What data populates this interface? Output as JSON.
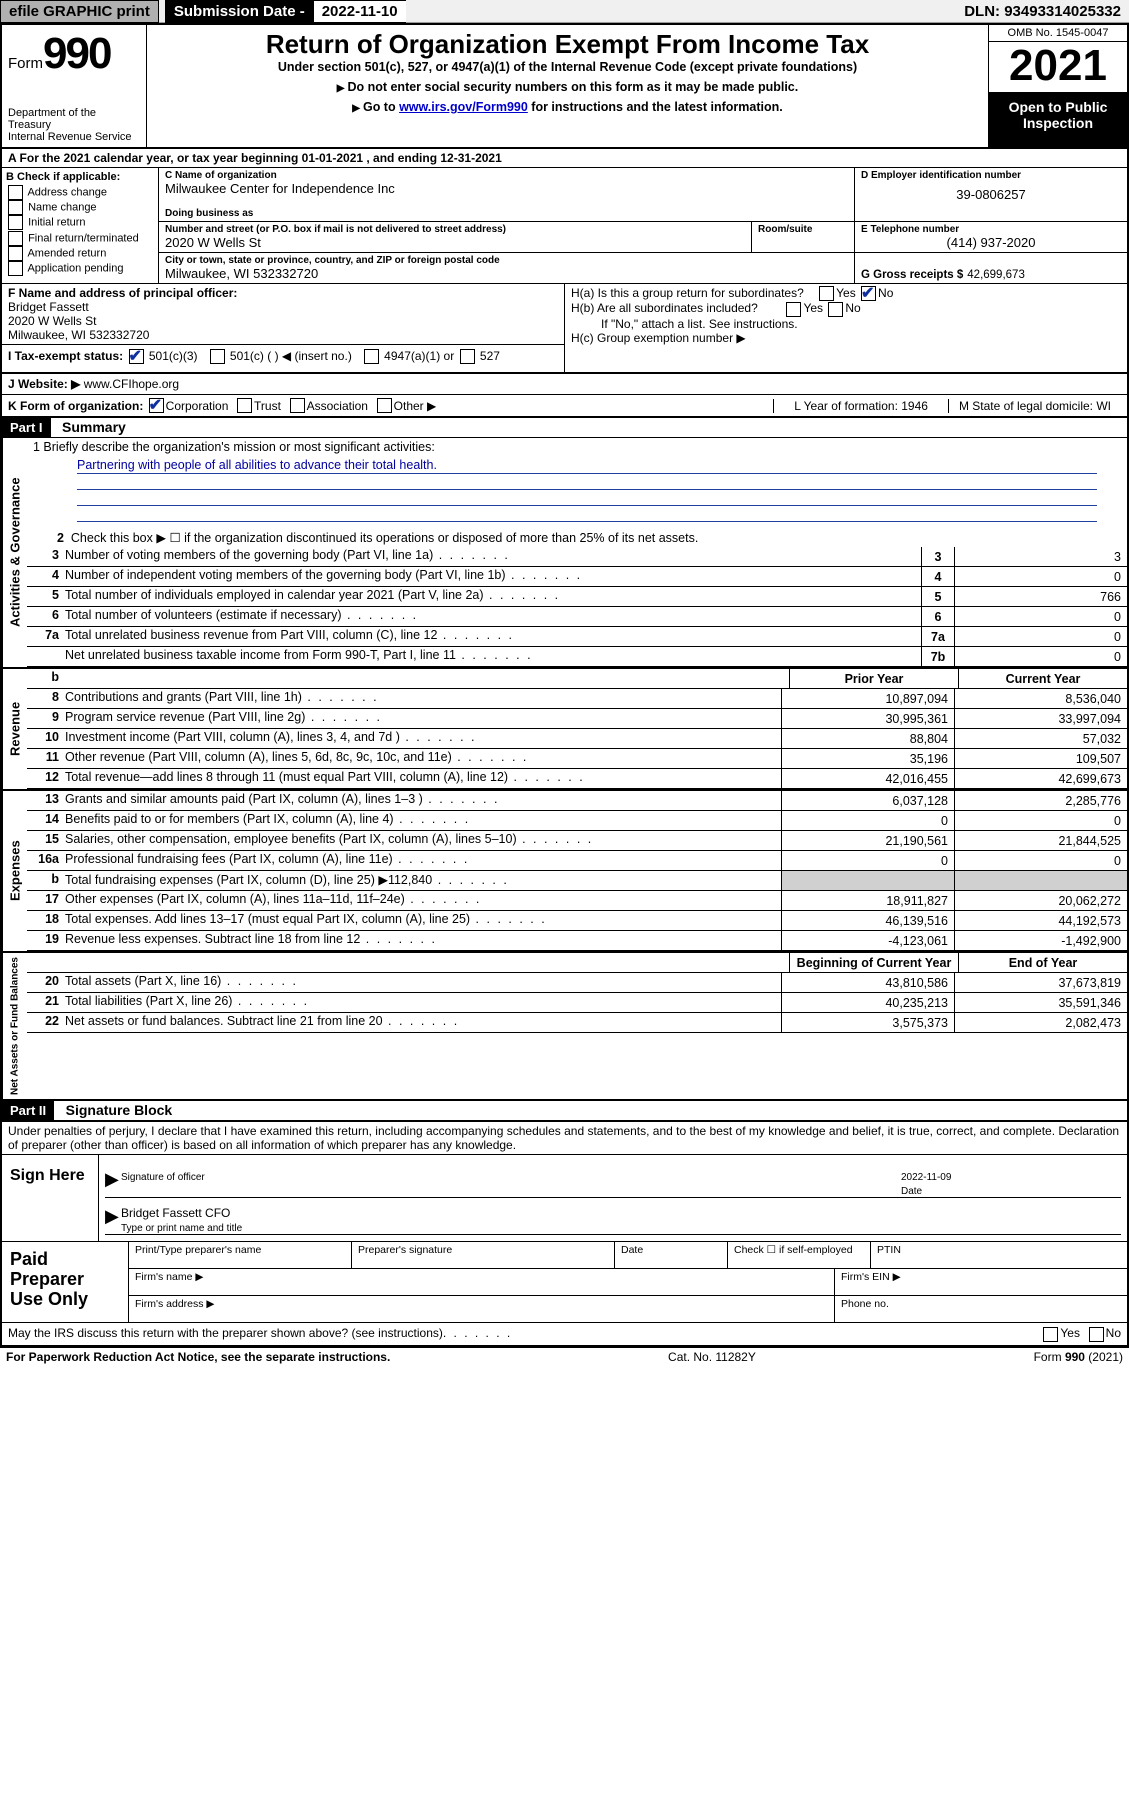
{
  "topbar": {
    "efile": "efile GRAPHIC print",
    "sub_label": "Submission Date -",
    "sub_date": "2022-11-10",
    "dln": "DLN: 93493314025332"
  },
  "header": {
    "form_prefix": "Form",
    "form_num": "990",
    "dept": "Department of the Treasury",
    "irs": "Internal Revenue Service",
    "title": "Return of Organization Exempt From Income Tax",
    "sub": "Under section 501(c), 527, or 4947(a)(1) of the Internal Revenue Code (except private foundations)",
    "instr1": "Do not enter social security numbers on this form as it may be made public.",
    "instr2_pre": "Go to ",
    "instr2_link": "www.irs.gov/Form990",
    "instr2_post": " for instructions and the latest information.",
    "omb": "OMB No. 1545-0047",
    "year": "2021",
    "open": "Open to Public Inspection"
  },
  "rowA": "A For the 2021 calendar year, or tax year beginning 01-01-2021   , and ending 12-31-2021",
  "boxB": {
    "label": "B Check if applicable:",
    "opts": [
      "Address change",
      "Name change",
      "Initial return",
      "Final return/terminated",
      "Amended return",
      "Application pending"
    ]
  },
  "boxC": {
    "name_label": "C Name of organization",
    "name": "Milwaukee Center for Independence Inc",
    "dba_label": "Doing business as",
    "addr_label": "Number and street (or P.O. box if mail is not delivered to street address)",
    "addr": "2020 W Wells St",
    "room_label": "Room/suite",
    "city_label": "City or town, state or province, country, and ZIP or foreign postal code",
    "city": "Milwaukee, WI  532332720"
  },
  "boxD": {
    "label": "D Employer identification number",
    "val": "39-0806257"
  },
  "boxE": {
    "label": "E Telephone number",
    "val": "(414) 937-2020"
  },
  "boxG": {
    "label": "G Gross receipts $",
    "val": "42,699,673"
  },
  "boxF": {
    "label": "F Name and address of principal officer:",
    "name": "Bridget Fassett",
    "addr": "2020 W Wells St",
    "city": "Milwaukee, WI  532332720"
  },
  "boxH": {
    "a": "H(a)  Is this a group return for subordinates?",
    "b": "H(b)  Are all subordinates included?",
    "note": "If \"No,\" attach a list. See instructions.",
    "c": "H(c)  Group exemption number ▶"
  },
  "rowI": {
    "label": "I  Tax-exempt status:",
    "o1": "501(c)(3)",
    "o2": "501(c) (  ) ◀ (insert no.)",
    "o3": "4947(a)(1) or",
    "o4": "527"
  },
  "rowJ": {
    "label": "J  Website: ▶",
    "val": "www.CFIhope.org"
  },
  "rowK": {
    "label": "K Form of organization:",
    "opts": [
      "Corporation",
      "Trust",
      "Association",
      "Other ▶"
    ],
    "L": "L Year of formation: 1946",
    "M": "M State of legal domicile: WI"
  },
  "part1": {
    "label": "Part I",
    "title": "Summary"
  },
  "summary": {
    "gov_label": "Activities & Governance",
    "rev_label": "Revenue",
    "exp_label": "Expenses",
    "net_label": "Net Assets or Fund Balances",
    "line1_label": "1  Briefly describe the organization's mission or most significant activities:",
    "line1_text": "Partnering with people of all abilities to advance their total health.",
    "line2": "Check this box ▶ ☐  if the organization discontinued its operations or disposed of more than 25% of its net assets.",
    "rows_gov": [
      {
        "n": "3",
        "d": "Number of voting members of the governing body (Part VI, line 1a)",
        "box": "3",
        "v": "3"
      },
      {
        "n": "4",
        "d": "Number of independent voting members of the governing body (Part VI, line 1b)",
        "box": "4",
        "v": "0"
      },
      {
        "n": "5",
        "d": "Total number of individuals employed in calendar year 2021 (Part V, line 2a)",
        "box": "5",
        "v": "766"
      },
      {
        "n": "6",
        "d": "Total number of volunteers (estimate if necessary)",
        "box": "6",
        "v": "0"
      },
      {
        "n": "7a",
        "d": "Total unrelated business revenue from Part VIII, column (C), line 12",
        "box": "7a",
        "v": "0"
      },
      {
        "n": "",
        "d": "Net unrelated business taxable income from Form 990-T, Part I, line 11",
        "box": "7b",
        "v": "0"
      }
    ],
    "col_prior": "Prior Year",
    "col_current": "Current Year",
    "rows_rev": [
      {
        "n": "8",
        "d": "Contributions and grants (Part VIII, line 1h)",
        "p": "10,897,094",
        "c": "8,536,040"
      },
      {
        "n": "9",
        "d": "Program service revenue (Part VIII, line 2g)",
        "p": "30,995,361",
        "c": "33,997,094"
      },
      {
        "n": "10",
        "d": "Investment income (Part VIII, column (A), lines 3, 4, and 7d )",
        "p": "88,804",
        "c": "57,032"
      },
      {
        "n": "11",
        "d": "Other revenue (Part VIII, column (A), lines 5, 6d, 8c, 9c, 10c, and 11e)",
        "p": "35,196",
        "c": "109,507"
      },
      {
        "n": "12",
        "d": "Total revenue—add lines 8 through 11 (must equal Part VIII, column (A), line 12)",
        "p": "42,016,455",
        "c": "42,699,673"
      }
    ],
    "rows_exp": [
      {
        "n": "13",
        "d": "Grants and similar amounts paid (Part IX, column (A), lines 1–3 )",
        "p": "6,037,128",
        "c": "2,285,776"
      },
      {
        "n": "14",
        "d": "Benefits paid to or for members (Part IX, column (A), line 4)",
        "p": "0",
        "c": "0"
      },
      {
        "n": "15",
        "d": "Salaries, other compensation, employee benefits (Part IX, column (A), lines 5–10)",
        "p": "21,190,561",
        "c": "21,844,525"
      },
      {
        "n": "16a",
        "d": "Professional fundraising fees (Part IX, column (A), line 11e)",
        "p": "0",
        "c": "0"
      },
      {
        "n": "b",
        "d": "Total fundraising expenses (Part IX, column (D), line 25) ▶112,840",
        "p": "grey",
        "c": "grey"
      },
      {
        "n": "17",
        "d": "Other expenses (Part IX, column (A), lines 11a–11d, 11f–24e)",
        "p": "18,911,827",
        "c": "20,062,272"
      },
      {
        "n": "18",
        "d": "Total expenses. Add lines 13–17 (must equal Part IX, column (A), line 25)",
        "p": "46,139,516",
        "c": "44,192,573"
      },
      {
        "n": "19",
        "d": "Revenue less expenses. Subtract line 18 from line 12",
        "p": "-4,123,061",
        "c": "-1,492,900"
      }
    ],
    "col_begin": "Beginning of Current Year",
    "col_end": "End of Year",
    "rows_net": [
      {
        "n": "20",
        "d": "Total assets (Part X, line 16)",
        "p": "43,810,586",
        "c": "37,673,819"
      },
      {
        "n": "21",
        "d": "Total liabilities (Part X, line 26)",
        "p": "40,235,213",
        "c": "35,591,346"
      },
      {
        "n": "22",
        "d": "Net assets or fund balances. Subtract line 21 from line 20",
        "p": "3,575,373",
        "c": "2,082,473"
      }
    ]
  },
  "part2": {
    "label": "Part II",
    "title": "Signature Block"
  },
  "sig": {
    "decl": "Under penalties of perjury, I declare that I have examined this return, including accompanying schedules and statements, and to the best of my knowledge and belief, it is true, correct, and complete. Declaration of preparer (other than officer) is based on all information of which preparer has any knowledge.",
    "sign_here": "Sign Here",
    "sig_officer": "Signature of officer",
    "date": "Date",
    "date_val": "2022-11-09",
    "name": "Bridget Fassett CFO",
    "name_label": "Type or print name and title",
    "paid": "Paid Preparer Use Only",
    "p_name": "Print/Type preparer's name",
    "p_sig": "Preparer's signature",
    "p_date": "Date",
    "p_check": "Check ☐ if self-employed",
    "p_ptin": "PTIN",
    "p_firm": "Firm's name  ▶",
    "p_ein": "Firm's EIN ▶",
    "p_addr": "Firm's address ▶",
    "p_phone": "Phone no.",
    "discuss": "May the IRS discuss this return with the preparer shown above? (see instructions)"
  },
  "footer": {
    "left": "For Paperwork Reduction Act Notice, see the separate instructions.",
    "mid": "Cat. No. 11282Y",
    "right": "Form 990 (2021)"
  },
  "style": {
    "link_color": "#0000cc",
    "mission_color": "#0000a0",
    "check_color": "#1030a0"
  }
}
